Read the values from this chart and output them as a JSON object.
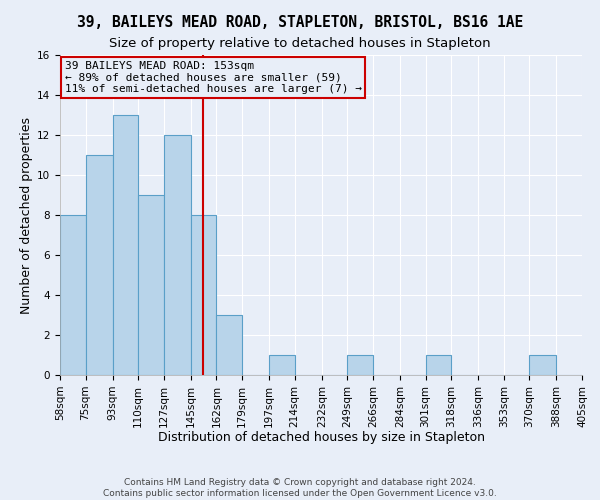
{
  "title": "39, BAILEYS MEAD ROAD, STAPLETON, BRISTOL, BS16 1AE",
  "subtitle": "Size of property relative to detached houses in Stapleton",
  "xlabel": "Distribution of detached houses by size in Stapleton",
  "ylabel": "Number of detached properties",
  "footer_lines": [
    "Contains HM Land Registry data © Crown copyright and database right 2024.",
    "Contains public sector information licensed under the Open Government Licence v3.0."
  ],
  "bin_edges": [
    58,
    75,
    93,
    110,
    127,
    145,
    162,
    179,
    197,
    214,
    232,
    249,
    266,
    284,
    301,
    318,
    336,
    353,
    370,
    388,
    405
  ],
  "bin_labels": [
    "58sqm",
    "75sqm",
    "93sqm",
    "110sqm",
    "127sqm",
    "145sqm",
    "162sqm",
    "179sqm",
    "197sqm",
    "214sqm",
    "232sqm",
    "249sqm",
    "266sqm",
    "284sqm",
    "301sqm",
    "318sqm",
    "336sqm",
    "353sqm",
    "370sqm",
    "388sqm",
    "405sqm"
  ],
  "counts": [
    8,
    11,
    13,
    9,
    12,
    8,
    3,
    0,
    1,
    0,
    0,
    1,
    0,
    0,
    1,
    0,
    0,
    0,
    1,
    0
  ],
  "bar_color": "#b8d4ea",
  "bar_edge_color": "#5a9fc8",
  "vline_x": 153,
  "vline_color": "#cc0000",
  "annotation_text": "39 BAILEYS MEAD ROAD: 153sqm\n← 89% of detached houses are smaller (59)\n11% of semi-detached houses are larger (7) →",
  "annotation_box_edge": "#cc0000",
  "ylim": [
    0,
    16
  ],
  "yticks": [
    0,
    2,
    4,
    6,
    8,
    10,
    12,
    14,
    16
  ],
  "background_color": "#e8eef8",
  "grid_color": "#ffffff",
  "title_fontsize": 10.5,
  "subtitle_fontsize": 9.5,
  "axis_label_fontsize": 9,
  "tick_fontsize": 7.5,
  "annotation_fontsize": 8,
  "footer_fontsize": 6.5
}
